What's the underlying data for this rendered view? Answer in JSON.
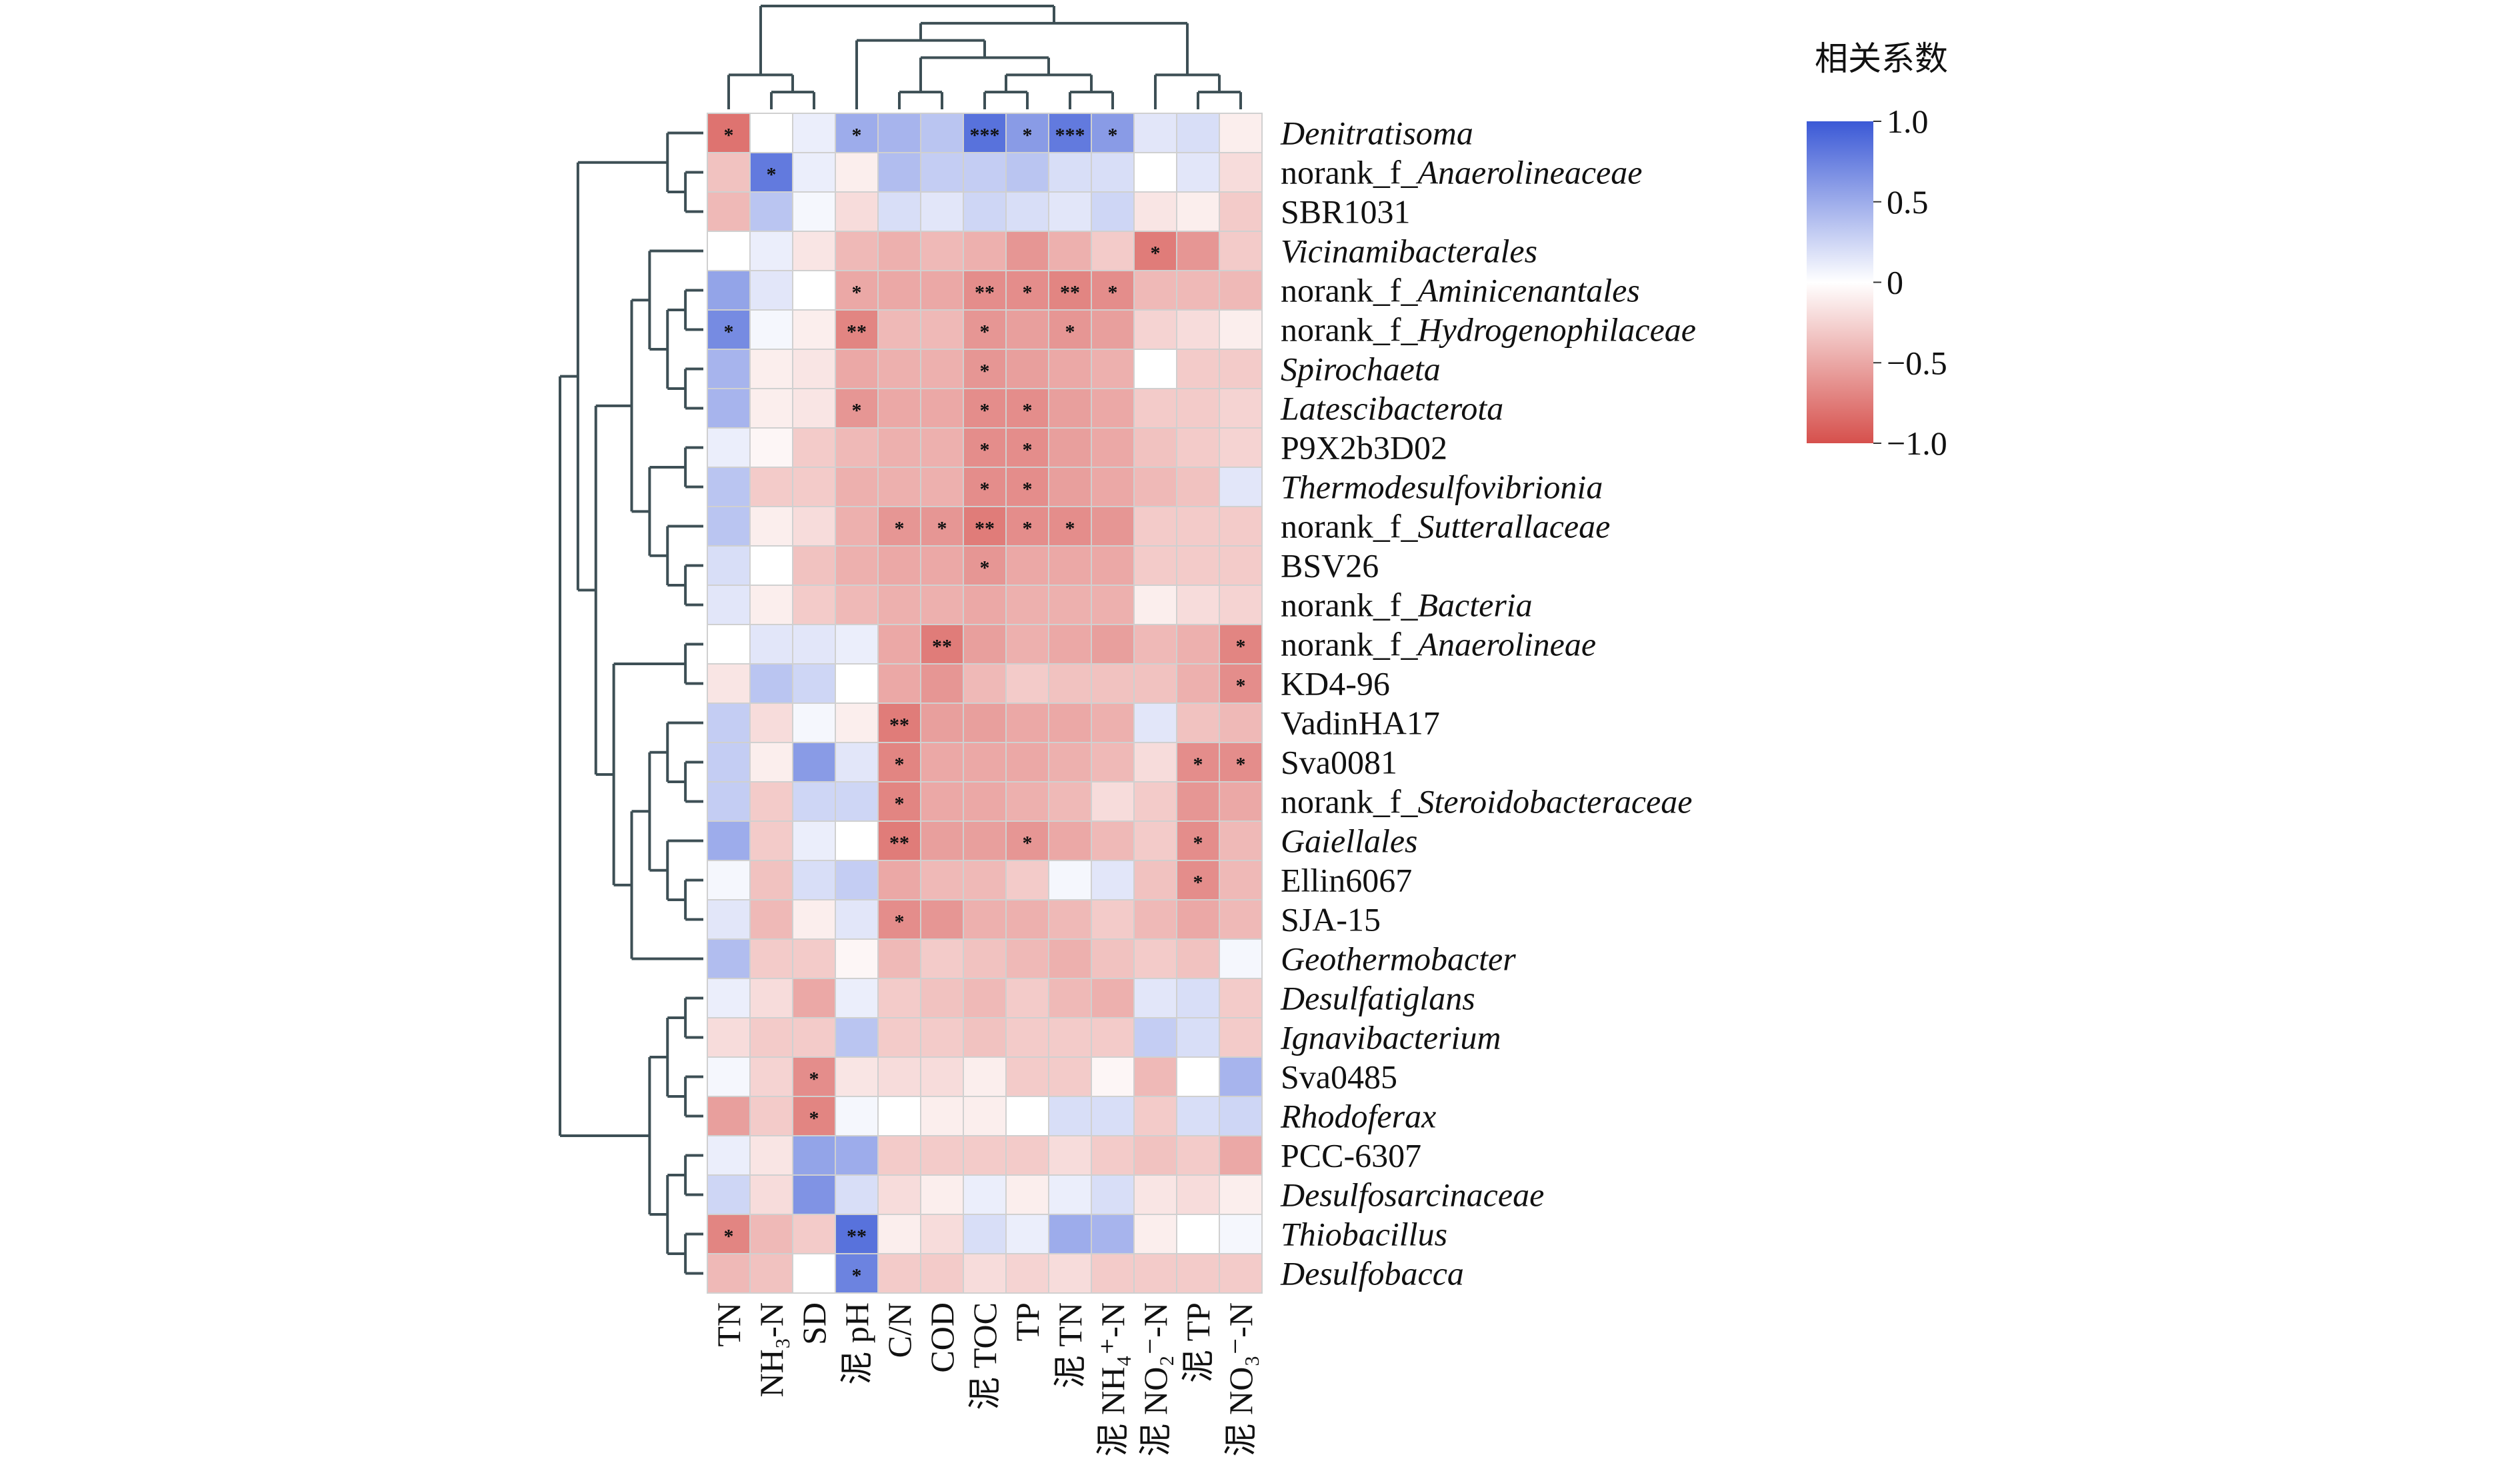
{
  "chart_data": {
    "type": "heatmap",
    "colorbar_title": "相关系数",
    "clim": [
      -1,
      1
    ],
    "colorbar_ticks": [
      {
        "value": 1,
        "label": "1.0"
      },
      0.5,
      0,
      {
        "value": -0.5,
        "label": "−0.5"
      },
      {
        "value": -1,
        "label": "−1.0"
      }
    ],
    "colors": {
      "low": "#d6504c",
      "mid": "#ffffff",
      "high": "#3b59d6"
    },
    "columns": [
      "TN",
      "NH₃-N",
      "SD",
      "泥 pH",
      "C/N",
      "COD",
      "泥 TOC",
      "TP",
      "泥 TN",
      "泥 NH₄⁺-N",
      "泥 NO₂⁻-N",
      "泥 TP",
      "泥 NO₃⁻-N"
    ],
    "rows": [
      {
        "name": "Denitratisoma",
        "italic": true
      },
      {
        "prefix": "norank_f_",
        "name": "Anaerolineaceae",
        "italic": true
      },
      {
        "name": "SBR1031",
        "italic": false
      },
      {
        "name": "Vicinamibacterales",
        "italic": true
      },
      {
        "prefix": "norank_f_",
        "name": "Aminicenantales",
        "italic": true
      },
      {
        "prefix": "norank_f_",
        "name": "Hydrogenophilaceae",
        "italic": true
      },
      {
        "name": "Spirochaeta",
        "italic": true
      },
      {
        "name": "Latescibacterota",
        "italic": true
      },
      {
        "name": "P9X2b3D02",
        "italic": false
      },
      {
        "name": "Thermodesulfovibrionia",
        "italic": true
      },
      {
        "prefix": "norank_f_",
        "name": "Sutterallaceae",
        "italic": true
      },
      {
        "name": "BSV26",
        "italic": false
      },
      {
        "prefix": "norank_f_",
        "name": "Bacteria",
        "italic": true
      },
      {
        "prefix": "norank_f_",
        "name": "Anaerolineae",
        "italic": true
      },
      {
        "name": "KD4-96",
        "italic": false
      },
      {
        "name": "VadinHA17",
        "italic": false
      },
      {
        "name": "Sva0081",
        "italic": false
      },
      {
        "prefix": "norank_f_",
        "name": "Steroidobacteraceae",
        "italic": true
      },
      {
        "name": "Gaiellales",
        "italic": true
      },
      {
        "name": "Ellin6067",
        "italic": false
      },
      {
        "name": "SJA-15",
        "italic": false
      },
      {
        "name": "Geothermobacter",
        "italic": true
      },
      {
        "name": "Desulfatiglans",
        "italic": true
      },
      {
        "name": "Ignavibacterium",
        "italic": true
      },
      {
        "name": "Sva0485",
        "italic": false
      },
      {
        "name": "Rhodoferax",
        "italic": true
      },
      {
        "name": "PCC-6307",
        "italic": false
      },
      {
        "name": "Desulfosarcinaceae",
        "italic": true
      },
      {
        "name": "Thiobacillus",
        "italic": true
      },
      {
        "name": "Desulfobacca",
        "italic": true
      }
    ],
    "values": [
      [
        -0.8,
        0.0,
        0.1,
        0.5,
        0.45,
        0.35,
        0.85,
        0.6,
        0.8,
        0.6,
        0.15,
        0.2,
        -0.1
      ],
      [
        -0.35,
        0.8,
        0.1,
        -0.1,
        0.4,
        0.3,
        0.3,
        0.35,
        0.2,
        0.2,
        0.0,
        0.15,
        -0.2
      ],
      [
        -0.4,
        0.35,
        0.05,
        -0.2,
        0.2,
        0.15,
        0.25,
        0.2,
        0.15,
        0.25,
        -0.15,
        -0.1,
        -0.3
      ],
      [
        0.0,
        0.1,
        -0.15,
        -0.4,
        -0.45,
        -0.4,
        -0.45,
        -0.6,
        -0.45,
        -0.3,
        -0.75,
        -0.6,
        -0.3
      ],
      [
        0.55,
        0.15,
        0.0,
        -0.5,
        -0.5,
        -0.5,
        -0.65,
        -0.65,
        -0.7,
        -0.65,
        -0.4,
        -0.4,
        -0.4
      ],
      [
        0.7,
        0.05,
        -0.1,
        -0.7,
        -0.4,
        -0.4,
        -0.6,
        -0.55,
        -0.6,
        -0.55,
        -0.25,
        -0.2,
        -0.1
      ],
      [
        0.45,
        -0.1,
        -0.15,
        -0.5,
        -0.45,
        -0.45,
        -0.6,
        -0.55,
        -0.5,
        -0.45,
        0.0,
        -0.3,
        -0.3
      ],
      [
        0.45,
        -0.1,
        -0.15,
        -0.6,
        -0.5,
        -0.5,
        -0.65,
        -0.65,
        -0.55,
        -0.5,
        -0.3,
        -0.3,
        -0.25
      ],
      [
        0.1,
        -0.05,
        -0.3,
        -0.4,
        -0.45,
        -0.45,
        -0.65,
        -0.65,
        -0.55,
        -0.5,
        -0.35,
        -0.3,
        -0.25
      ],
      [
        0.35,
        -0.3,
        -0.3,
        -0.45,
        -0.45,
        -0.45,
        -0.65,
        -0.65,
        -0.55,
        -0.5,
        -0.4,
        -0.35,
        0.15
      ],
      [
        0.35,
        -0.1,
        -0.2,
        -0.45,
        -0.6,
        -0.6,
        -0.75,
        -0.65,
        -0.65,
        -0.6,
        -0.3,
        -0.3,
        -0.3
      ],
      [
        0.2,
        0.0,
        -0.35,
        -0.45,
        -0.5,
        -0.5,
        -0.6,
        -0.5,
        -0.5,
        -0.5,
        -0.3,
        -0.3,
        -0.3
      ],
      [
        0.15,
        -0.1,
        -0.3,
        -0.4,
        -0.45,
        -0.45,
        -0.5,
        -0.45,
        -0.45,
        -0.45,
        -0.1,
        -0.2,
        -0.25
      ],
      [
        0.0,
        0.15,
        0.15,
        0.1,
        -0.5,
        -0.75,
        -0.55,
        -0.45,
        -0.5,
        -0.55,
        -0.4,
        -0.45,
        -0.7
      ],
      [
        -0.15,
        0.35,
        0.25,
        0.0,
        -0.5,
        -0.6,
        -0.4,
        -0.3,
        -0.35,
        -0.35,
        -0.35,
        -0.45,
        -0.65
      ],
      [
        0.3,
        -0.2,
        0.05,
        -0.1,
        -0.75,
        -0.55,
        -0.55,
        -0.5,
        -0.5,
        -0.45,
        0.15,
        -0.35,
        -0.4
      ],
      [
        0.3,
        -0.1,
        0.6,
        0.15,
        -0.7,
        -0.5,
        -0.5,
        -0.5,
        -0.45,
        -0.4,
        -0.2,
        -0.65,
        -0.65
      ],
      [
        0.3,
        -0.3,
        0.25,
        0.25,
        -0.7,
        -0.5,
        -0.5,
        -0.45,
        -0.4,
        -0.2,
        -0.3,
        -0.6,
        -0.5
      ],
      [
        0.5,
        -0.3,
        0.1,
        0.0,
        -0.75,
        -0.55,
        -0.55,
        -0.6,
        -0.5,
        -0.4,
        -0.3,
        -0.65,
        -0.4
      ],
      [
        0.05,
        -0.35,
        0.2,
        0.3,
        -0.5,
        -0.4,
        -0.4,
        -0.3,
        0.05,
        0.15,
        -0.35,
        -0.65,
        -0.4
      ],
      [
        0.15,
        -0.4,
        -0.1,
        0.15,
        -0.65,
        -0.6,
        -0.45,
        -0.45,
        -0.4,
        -0.3,
        -0.4,
        -0.5,
        -0.4
      ],
      [
        0.4,
        -0.3,
        -0.3,
        -0.05,
        -0.4,
        -0.3,
        -0.35,
        -0.4,
        -0.45,
        -0.35,
        -0.3,
        -0.35,
        0.05
      ],
      [
        0.1,
        -0.2,
        -0.5,
        0.1,
        -0.3,
        -0.35,
        -0.4,
        -0.3,
        -0.4,
        -0.45,
        0.15,
        0.2,
        -0.3
      ],
      [
        -0.2,
        -0.3,
        -0.3,
        0.35,
        -0.3,
        -0.3,
        -0.35,
        -0.3,
        -0.3,
        -0.3,
        0.3,
        0.2,
        -0.3
      ],
      [
        0.05,
        -0.25,
        -0.65,
        -0.15,
        -0.2,
        -0.2,
        -0.1,
        -0.3,
        -0.3,
        -0.05,
        -0.4,
        0.0,
        0.45
      ],
      [
        -0.55,
        -0.3,
        -0.7,
        0.05,
        0.0,
        -0.1,
        -0.1,
        0.0,
        0.2,
        0.2,
        -0.3,
        0.2,
        0.25
      ],
      [
        0.1,
        -0.15,
        0.55,
        0.5,
        -0.3,
        -0.3,
        -0.3,
        -0.3,
        -0.2,
        -0.3,
        -0.35,
        -0.3,
        -0.5
      ],
      [
        0.25,
        -0.2,
        0.65,
        0.2,
        -0.2,
        -0.1,
        0.1,
        -0.1,
        0.1,
        0.2,
        -0.15,
        -0.2,
        -0.1
      ],
      [
        -0.7,
        -0.4,
        -0.3,
        0.85,
        -0.1,
        -0.2,
        0.2,
        0.1,
        0.5,
        0.45,
        -0.1,
        0.0,
        0.05
      ],
      [
        -0.4,
        -0.35,
        0.0,
        0.75,
        -0.3,
        -0.3,
        -0.2,
        -0.25,
        -0.2,
        -0.3,
        -0.3,
        -0.3,
        -0.3
      ]
    ],
    "stars": [
      [
        "*",
        null,
        null,
        "*",
        null,
        null,
        "***",
        "*",
        "***",
        "*",
        null,
        null,
        null
      ],
      [
        null,
        "*",
        null,
        null,
        null,
        null,
        null,
        null,
        null,
        null,
        null,
        null,
        null
      ],
      [
        null,
        null,
        null,
        null,
        null,
        null,
        null,
        null,
        null,
        null,
        null,
        null,
        null
      ],
      [
        null,
        null,
        null,
        null,
        null,
        null,
        null,
        null,
        null,
        null,
        "*",
        null,
        null
      ],
      [
        null,
        null,
        null,
        "*",
        null,
        null,
        "**",
        "*",
        "**",
        "*",
        null,
        null,
        null
      ],
      [
        "*",
        null,
        null,
        "**",
        null,
        null,
        "*",
        null,
        "*",
        null,
        null,
        null,
        null
      ],
      [
        null,
        null,
        null,
        null,
        null,
        null,
        "*",
        null,
        null,
        null,
        null,
        null,
        null
      ],
      [
        null,
        null,
        null,
        "*",
        null,
        null,
        "*",
        "*",
        null,
        null,
        null,
        null,
        null
      ],
      [
        null,
        null,
        null,
        null,
        null,
        null,
        "*",
        "*",
        null,
        null,
        null,
        null,
        null
      ],
      [
        null,
        null,
        null,
        null,
        null,
        null,
        "*",
        "*",
        null,
        null,
        null,
        null,
        null
      ],
      [
        null,
        null,
        null,
        null,
        "*",
        "*",
        "**",
        "*",
        "*",
        null,
        null,
        null,
        null
      ],
      [
        null,
        null,
        null,
        null,
        null,
        null,
        "*",
        null,
        null,
        null,
        null,
        null,
        null
      ],
      [
        null,
        null,
        null,
        null,
        null,
        null,
        null,
        null,
        null,
        null,
        null,
        null,
        null
      ],
      [
        null,
        null,
        null,
        null,
        null,
        "**",
        null,
        null,
        null,
        null,
        null,
        null,
        "*"
      ],
      [
        null,
        null,
        null,
        null,
        null,
        null,
        null,
        null,
        null,
        null,
        null,
        null,
        "*"
      ],
      [
        null,
        null,
        null,
        null,
        "**",
        null,
        null,
        null,
        null,
        null,
        null,
        null,
        null
      ],
      [
        null,
        null,
        null,
        null,
        "*",
        null,
        null,
        null,
        null,
        null,
        null,
        "*",
        "*"
      ],
      [
        null,
        null,
        null,
        null,
        "*",
        null,
        null,
        null,
        null,
        null,
        null,
        null,
        null
      ],
      [
        null,
        null,
        null,
        null,
        "**",
        null,
        null,
        "*",
        null,
        null,
        null,
        "*",
        null
      ],
      [
        null,
        null,
        null,
        null,
        null,
        null,
        null,
        null,
        null,
        null,
        null,
        "*",
        null
      ],
      [
        null,
        null,
        null,
        null,
        "*",
        null,
        null,
        null,
        null,
        null,
        null,
        null,
        null
      ],
      [
        null,
        null,
        null,
        null,
        null,
        null,
        null,
        null,
        null,
        null,
        null,
        null,
        null
      ],
      [
        null,
        null,
        null,
        null,
        null,
        null,
        null,
        null,
        null,
        null,
        null,
        null,
        null
      ],
      [
        null,
        null,
        null,
        null,
        null,
        null,
        null,
        null,
        null,
        null,
        null,
        null,
        null
      ],
      [
        null,
        null,
        "*",
        null,
        null,
        null,
        null,
        null,
        null,
        null,
        null,
        null,
        null
      ],
      [
        null,
        null,
        "*",
        null,
        null,
        null,
        null,
        null,
        null,
        null,
        null,
        null,
        null
      ],
      [
        null,
        null,
        null,
        null,
        null,
        null,
        null,
        null,
        null,
        null,
        null,
        null,
        null
      ],
      [
        null,
        null,
        null,
        null,
        null,
        null,
        null,
        null,
        null,
        null,
        null,
        null,
        null
      ],
      [
        "*",
        null,
        null,
        "**",
        null,
        null,
        null,
        null,
        null,
        null,
        null,
        null,
        null
      ],
      [
        null,
        null,
        null,
        "*",
        null,
        null,
        null,
        null,
        null,
        null,
        null,
        null,
        null
      ]
    ]
  }
}
